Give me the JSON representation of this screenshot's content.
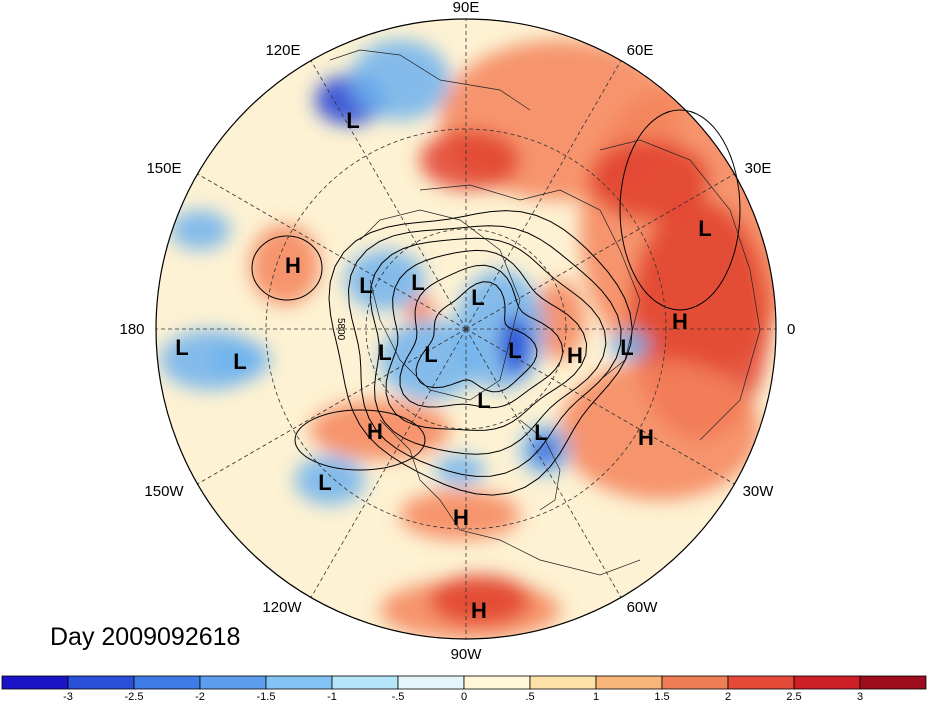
{
  "title": "Day 2009092618",
  "contour_label": "5800",
  "longitude_labels": [
    "90E",
    "60E",
    "30E",
    "0",
    "30W",
    "60W",
    "90W",
    "120W",
    "150W",
    "180",
    "150E",
    "120E"
  ],
  "pressure_systems": [
    {
      "type": "L"
    },
    {
      "type": "L"
    },
    {
      "type": "L"
    },
    {
      "type": "L"
    },
    {
      "type": "L"
    },
    {
      "type": "L"
    },
    {
      "type": "L"
    },
    {
      "type": "L"
    },
    {
      "type": "L"
    },
    {
      "type": "L"
    },
    {
      "type": "L"
    },
    {
      "type": "L"
    },
    {
      "type": "L"
    },
    {
      "type": "L"
    },
    {
      "type": "H"
    },
    {
      "type": "H"
    },
    {
      "type": "H"
    },
    {
      "type": "H"
    },
    {
      "type": "H"
    },
    {
      "type": "H"
    },
    {
      "type": "H"
    }
  ],
  "colorbar": {
    "ticks": [
      "-3",
      "-2.5",
      "-2",
      "-1.5",
      "-1",
      "-.5",
      "0",
      ".5",
      "1",
      "1.5",
      "2",
      "2.5",
      "3"
    ],
    "colors": [
      "#1a14c8",
      "#2a4fd9",
      "#3e7be6",
      "#5d9fee",
      "#83c4f5",
      "#b4e5f8",
      "#e3f6fb",
      "#fff7d8",
      "#fde2a8",
      "#f8b57a",
      "#f07e55",
      "#e54a39",
      "#cf1f26",
      "#9e0d1e"
    ]
  },
  "colors": {
    "warm": "#f4845c",
    "hot": "#e2412e",
    "cool": "#6fb2ef",
    "cold": "#1f3fd6",
    "neutral": "#fdf2d3"
  }
}
